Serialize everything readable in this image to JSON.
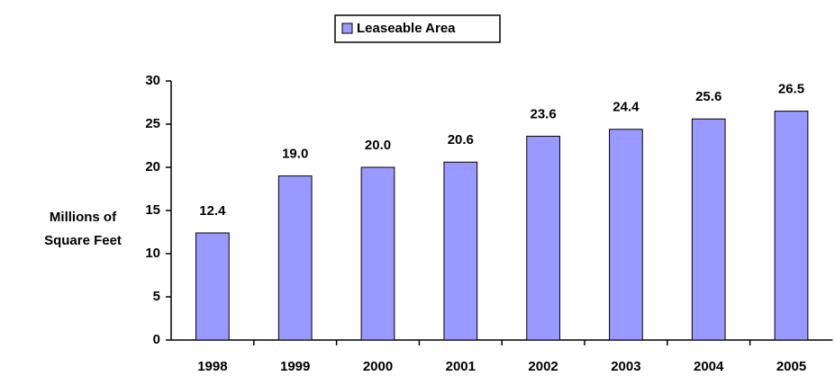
{
  "chart_data": {
    "type": "bar",
    "y_label": [
      "Millions of",
      "Square Feet"
    ],
    "categories": [
      "1998",
      "1999",
      "2000",
      "2001",
      "2002",
      "2003",
      "2004",
      "2005"
    ],
    "series": [
      {
        "name": "Leaseable Area",
        "color": "#9999ff",
        "values": [
          12.4,
          19.0,
          20.0,
          20.6,
          23.6,
          24.4,
          25.6,
          26.5
        ],
        "value_labels": [
          "12.4",
          "19.0",
          "20.0",
          "20.6",
          "23.6",
          "24.4",
          "25.6",
          "26.5"
        ]
      }
    ],
    "ylim": [
      0,
      30
    ],
    "yticks": [
      0,
      5,
      10,
      15,
      20,
      25,
      30
    ],
    "grid": false,
    "legend": "top"
  }
}
